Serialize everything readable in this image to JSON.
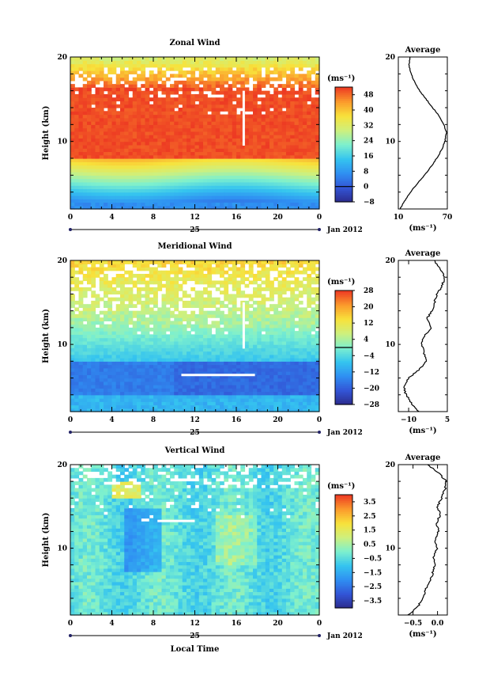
{
  "figure": {
    "xlabel": "Local Time",
    "date_label": "Jan 2012",
    "day_label": "25",
    "colorbar_units": "(ms⁻¹)"
  },
  "colors": {
    "scale": [
      "#2b2b8c",
      "#3355d6",
      "#2f8ff2",
      "#35c4ef",
      "#7df0ce",
      "#cef07d",
      "#f8e23b",
      "#fb9a2c",
      "#ed3a23"
    ]
  },
  "chart_data": [
    {
      "type": "heatmap",
      "title": "Zonal Wind",
      "ylabel": "Height (km)",
      "xlim": [
        0,
        24
      ],
      "ylim": [
        2,
        20
      ],
      "x_ticks": [
        "0",
        "4",
        "8",
        "12",
        "16",
        "20",
        "0"
      ],
      "y_ticks": [
        {
          "v": 10,
          "label": "10"
        },
        {
          "v": 20,
          "label": "20"
        }
      ],
      "colorbar": {
        "range": [
          -8,
          52
        ],
        "ticks": [
          -8,
          0,
          8,
          16,
          24,
          32,
          40,
          48
        ],
        "zero_line": 0
      },
      "field": "zonal",
      "profile": {
        "title": "Average",
        "xlim": [
          10,
          70
        ],
        "x_ticks": [
          {
            "v": 10,
            "label": "10"
          },
          {
            "v": 70,
            "label": "70"
          }
        ],
        "xlabel": "(ms⁻¹)",
        "height": [
          2,
          3,
          4,
          5,
          6,
          7,
          8,
          9,
          10,
          11,
          12,
          13,
          14,
          15,
          16,
          17,
          18,
          19,
          20
        ],
        "values": [
          12,
          18,
          25,
          33,
          42,
          50,
          57,
          63,
          67,
          69,
          66,
          60,
          52,
          44,
          36,
          30,
          26,
          23,
          24
        ]
      }
    },
    {
      "type": "heatmap",
      "title": "Meridional Wind",
      "ylabel": "Height (km)",
      "xlim": [
        0,
        24
      ],
      "ylim": [
        2,
        20
      ],
      "x_ticks": [
        "0",
        "4",
        "8",
        "12",
        "16",
        "20",
        "0"
      ],
      "y_ticks": [
        {
          "v": 10,
          "label": "10"
        },
        {
          "v": 20,
          "label": "20"
        }
      ],
      "colorbar": {
        "range": [
          -28,
          28
        ],
        "ticks": [
          -28,
          -20,
          -12,
          -4,
          4,
          12,
          20,
          28
        ],
        "zero_line": 0
      },
      "field": "meridional",
      "profile": {
        "title": "Average",
        "xlim": [
          -14,
          5
        ],
        "x_ticks": [
          {
            "v": -10,
            "label": "−10"
          },
          {
            "v": 5,
            "label": "5"
          }
        ],
        "xlabel": "(ms⁻¹)",
        "height": [
          2,
          3,
          4,
          5,
          6,
          7,
          8,
          9,
          10,
          11,
          12,
          13,
          14,
          15,
          16,
          17,
          18,
          19,
          20
        ],
        "values": [
          -6,
          -9,
          -11,
          -12,
          -10,
          -6,
          -3,
          -4,
          -5,
          -4,
          -1,
          -3,
          -1,
          0,
          1,
          3,
          4,
          2,
          0
        ]
      }
    },
    {
      "type": "heatmap",
      "title": "Vertical Wind",
      "ylabel": "Height (km)",
      "xlim": [
        0,
        24
      ],
      "ylim": [
        2,
        20
      ],
      "x_ticks": [
        "0",
        "4",
        "8",
        "12",
        "16",
        "20",
        "0"
      ],
      "y_ticks": [
        {
          "v": 10,
          "label": "10"
        },
        {
          "v": 20,
          "label": "20"
        }
      ],
      "colorbar": {
        "range": [
          -4,
          4
        ],
        "ticks": [
          -3.5,
          -2.5,
          -1.5,
          -0.5,
          0.5,
          1.5,
          2.5,
          3.5
        ],
        "zero_line": null
      },
      "field": "vertical",
      "profile": {
        "title": "Average",
        "xlim": [
          -0.8,
          0.2
        ],
        "x_ticks": [
          {
            "v": -0.5,
            "label": "−0.5"
          },
          {
            "v": 0.0,
            "label": "0.0"
          }
        ],
        "xlabel": "(ms⁻¹)",
        "height": [
          2,
          3,
          4,
          5,
          6,
          7,
          8,
          9,
          10,
          11,
          12,
          13,
          14,
          15,
          16,
          17,
          18,
          19,
          20
        ],
        "values": [
          -0.6,
          -0.4,
          -0.3,
          -0.25,
          -0.15,
          -0.1,
          -0.05,
          -0.08,
          0.0,
          -0.05,
          0.02,
          -0.02,
          0.05,
          0.0,
          0.08,
          0.15,
          0.18,
          0.02,
          -0.2
        ]
      }
    }
  ]
}
